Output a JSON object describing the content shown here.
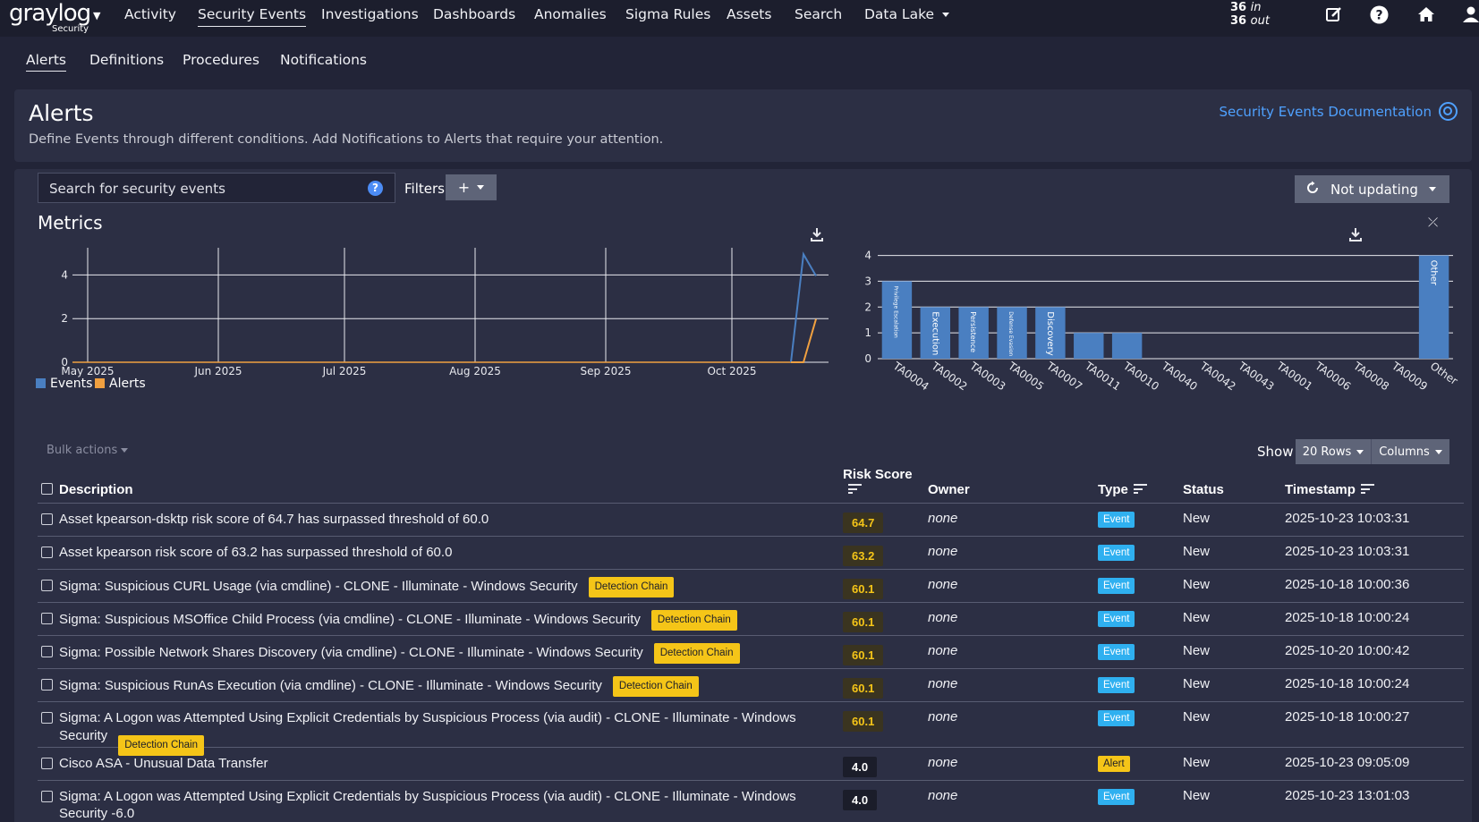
{
  "brand": {
    "logo": "graylog",
    "sub": "Security"
  },
  "topnav": {
    "items": [
      "Activity",
      "Security Events",
      "Investigations",
      "Dashboards",
      "Anomalies",
      "Sigma Rules",
      "Assets",
      "Search",
      "Data Lake"
    ],
    "active": "Security Events",
    "throughput_in": "36",
    "throughput_in_label": "in",
    "throughput_out": "36",
    "throughput_out_label": "out"
  },
  "subnav": {
    "items": [
      "Alerts",
      "Definitions",
      "Procedures",
      "Notifications"
    ],
    "active": "Alerts"
  },
  "header": {
    "title": "Alerts",
    "description": "Define Events through different conditions. Add Notifications to Alerts that require your attention.",
    "doc_link": "Security Events Documentation"
  },
  "search": {
    "placeholder": "Search for security events",
    "help": "?"
  },
  "filters": {
    "label": "Filters",
    "button": "+"
  },
  "refresh": {
    "label": "Not updating"
  },
  "metrics": {
    "title": "Metrics"
  },
  "chart_data": [
    {
      "type": "line",
      "x": [
        "May 2025",
        "Jun 2025",
        "Jul 2025",
        "Aug 2025",
        "Sep 2025",
        "Oct 2025"
      ],
      "ylim": [
        0,
        5
      ],
      "yticks": [
        0,
        2,
        4
      ],
      "series": [
        {
          "name": "Events",
          "color": "#4a7fc1"
        },
        {
          "name": "Alerts",
          "color": "#f0a040"
        }
      ],
      "tail": {
        "Events": [
          0,
          5,
          4
        ],
        "Alerts": [
          0,
          0,
          2
        ]
      }
    },
    {
      "type": "bar",
      "categories": [
        "TA0004",
        "TA0002",
        "TA0003",
        "TA0005",
        "TA0007",
        "TA0011",
        "TA0010",
        "TA0040",
        "TA0042",
        "TA0043",
        "TA0001",
        "TA0006",
        "TA0008",
        "TA0009",
        "Other"
      ],
      "bar_labels": [
        "Privilege Escalation",
        "Execution",
        "Persistence",
        "Defense Evasion",
        "Discovery",
        "",
        "",
        "",
        "",
        "",
        "",
        "",
        "",
        "",
        "Other"
      ],
      "values": [
        3,
        2,
        2,
        2,
        2,
        1,
        1,
        0,
        0,
        0,
        0,
        0,
        0,
        0,
        4
      ],
      "ylim": [
        0,
        4
      ],
      "yticks": [
        0,
        1,
        2,
        3,
        4
      ],
      "color": "#4a7fc1"
    }
  ],
  "table_controls": {
    "bulk": "Bulk actions",
    "show": "Show",
    "rows": "20 Rows",
    "columns": "Columns"
  },
  "table": {
    "headers": {
      "description": "Description",
      "risk": "Risk Score",
      "owner": "Owner",
      "type": "Type",
      "status": "Status",
      "timestamp": "Timestamp"
    },
    "rows": [
      {
        "desc": "Asset kpearson-dsktp risk score of 64.7 has surpassed threshold of 60.0",
        "chain": "",
        "risk": "64.7",
        "owner": "none",
        "type": "Event",
        "status": "New",
        "ts": "2025-10-23 10:03:31"
      },
      {
        "desc": "Asset kpearson risk score of 63.2 has surpassed threshold of 60.0",
        "chain": "",
        "risk": "63.2",
        "owner": "none",
        "type": "Event",
        "status": "New",
        "ts": "2025-10-23 10:03:31"
      },
      {
        "desc": "Sigma: Suspicious CURL Usage (via cmdline) - CLONE - Illuminate - Windows Security",
        "chain": "Detection Chain",
        "risk": "60.1",
        "owner": "none",
        "type": "Event",
        "status": "New",
        "ts": "2025-10-18 10:00:36"
      },
      {
        "desc": "Sigma: Suspicious MSOffice Child Process (via cmdline) - CLONE - Illuminate - Windows Security",
        "chain": "Detection Chain",
        "risk": "60.1",
        "owner": "none",
        "type": "Event",
        "status": "New",
        "ts": "2025-10-18 10:00:24"
      },
      {
        "desc": "Sigma: Possible Network Shares Discovery (via cmdline) - CLONE - Illuminate - Windows Security",
        "chain": "Detection Chain",
        "risk": "60.1",
        "owner": "none",
        "type": "Event",
        "status": "New",
        "ts": "2025-10-20 10:00:42"
      },
      {
        "desc": "Sigma: Suspicious RunAs Execution (via cmdline) - CLONE - Illuminate - Windows Security",
        "chain": "Detection Chain",
        "risk": "60.1",
        "owner": "none",
        "type": "Event",
        "status": "New",
        "ts": "2025-10-18 10:00:24"
      },
      {
        "desc": "Sigma: A Logon was Attempted Using Explicit Credentials by Suspicious Process (via audit) - CLONE - Illuminate - Windows Security",
        "chain": "Detection Chain",
        "risk": "60.1",
        "owner": "none",
        "type": "Event",
        "status": "New",
        "ts": "2025-10-18 10:00:27"
      },
      {
        "desc": "Cisco ASA - Unusual Data Transfer",
        "chain": "",
        "risk": "4.0",
        "owner": "none",
        "type": "Alert",
        "status": "New",
        "ts": "2025-10-23 09:05:09"
      },
      {
        "desc": "Sigma: A Logon was Attempted Using Explicit Credentials by Suspicious Process (via audit) - CLONE - Illuminate - Windows Security -6.0",
        "chain": "",
        "risk": "4.0",
        "owner": "none",
        "type": "Event",
        "status": "New",
        "ts": "2025-10-23 13:01:03"
      }
    ]
  }
}
